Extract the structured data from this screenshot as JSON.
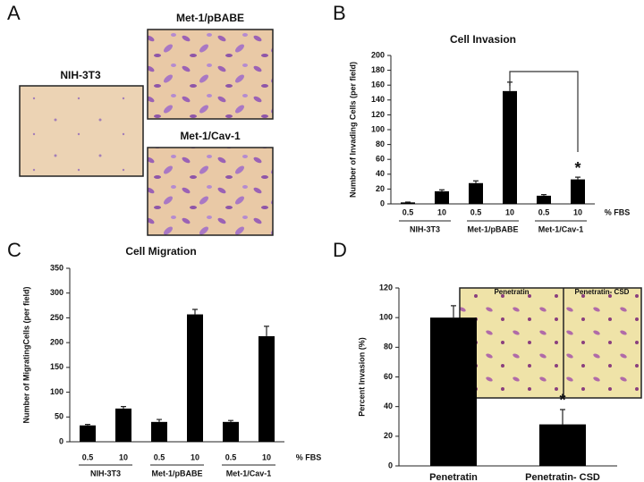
{
  "panel_a": {
    "panel": "A",
    "image_labels": [
      "NIH-3T3",
      "Met-1/pBABE",
      "Met-1/Cav-1"
    ]
  },
  "chart_data": [
    {
      "type": "bar",
      "panel": "B",
      "title": "Cell Invasion",
      "y_label": "Number of Invading Cells (per field)",
      "x_label": "% FBS",
      "categories": [
        "0.5",
        "10",
        "0.5",
        "10",
        "0.5",
        "10"
      ],
      "groups": [
        "NIH-3T3",
        "Met-1/pBABE",
        "Met-1/Cav-1"
      ],
      "values": [
        2,
        17,
        28,
        152,
        11,
        33
      ],
      "errors": [
        0.5,
        2,
        3,
        12,
        1.5,
        3
      ],
      "color": "#000000",
      "ylim": [
        0,
        200
      ],
      "yticks": [
        0,
        20,
        40,
        60,
        80,
        100,
        120,
        140,
        160,
        180,
        200
      ],
      "annotation": "*"
    },
    {
      "type": "bar",
      "panel": "C",
      "title": "Cell Migration",
      "y_label": "Number of MigratingCells (per field)",
      "x_label": "% FBS",
      "categories": [
        "0.5",
        "10",
        "0.5",
        "10",
        "0.5",
        "10"
      ],
      "groups": [
        "NIH-3T3",
        "Met-1/pBABE",
        "Met-1/Cav-1"
      ],
      "values": [
        33,
        67,
        40,
        257,
        40,
        213
      ],
      "errors": [
        2,
        4,
        5,
        10,
        3,
        20
      ],
      "color": "#000000",
      "ylim": [
        0,
        350
      ],
      "yticks": [
        0,
        50,
        100,
        150,
        200,
        250,
        300,
        350
      ]
    },
    {
      "type": "bar",
      "panel": "D",
      "y_label": "Percent Invasion (%)",
      "categories": [
        "Penetratin",
        "Penetratin- CSD"
      ],
      "inset_labels": [
        "Penetratin",
        "Penetratin- CSD"
      ],
      "values": [
        100,
        28
      ],
      "errors": [
        8,
        10
      ],
      "color": "#000000",
      "ylim": [
        0,
        120
      ],
      "yticks": [
        0,
        20,
        40,
        60,
        80,
        100,
        120
      ],
      "annotation": "*"
    }
  ]
}
